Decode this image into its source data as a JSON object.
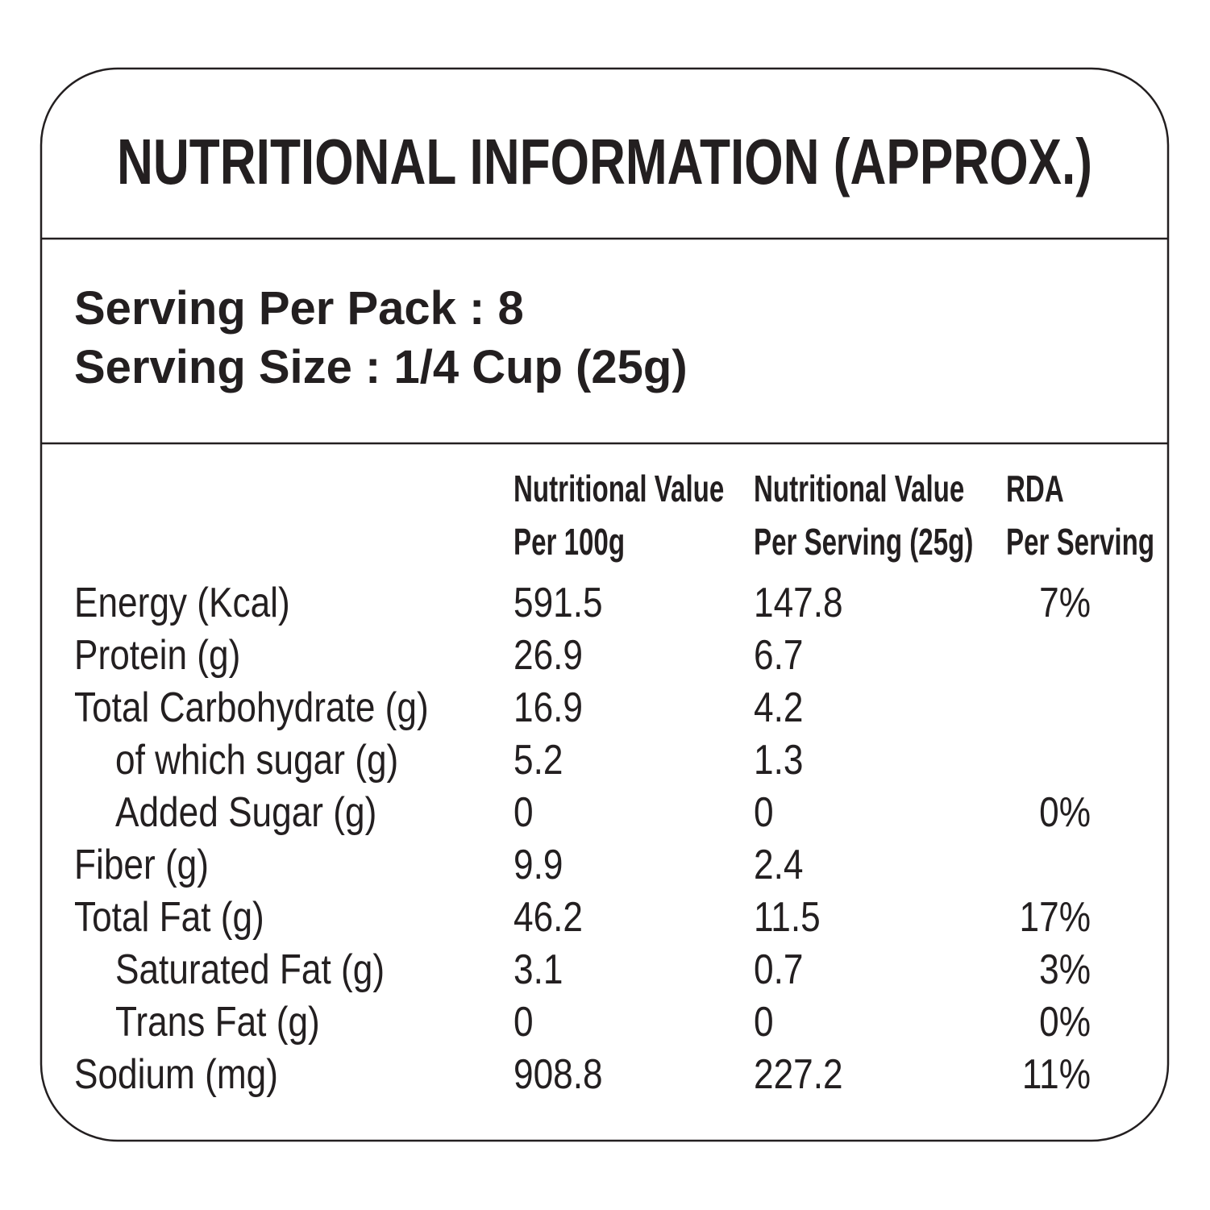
{
  "title": "NUTRITIONAL INFORMATION (APPROX.)",
  "serving": [
    "Serving Per Pack : 8",
    "Serving Size : 1/4 Cup (25g)"
  ],
  "table": {
    "columns": [
      [
        "Nutritional Value",
        "Per 100g"
      ],
      [
        "Nutritional Value",
        "Per Serving (25g)"
      ],
      [
        "RDA",
        "Per Serving"
      ]
    ],
    "rows": [
      {
        "name": "Energy  (Kcal)",
        "sub": false,
        "per_100g": "591.5",
        "per_serving": "147.8",
        "rda": "7%"
      },
      {
        "name": "Protein (g)",
        "sub": false,
        "per_100g": "26.9",
        "per_serving": "6.7",
        "rda": null
      },
      {
        "name": "Total Carbohydrate (g)",
        "sub": false,
        "per_100g": "16.9",
        "per_serving": "4.2",
        "rda": null
      },
      {
        "name": "of which sugar (g)",
        "sub": true,
        "per_100g": "5.2",
        "per_serving": "1.3",
        "rda": null
      },
      {
        "name": "Added Sugar (g)",
        "sub": true,
        "per_100g": "0",
        "per_serving": "0",
        "rda": "0%"
      },
      {
        "name": "Fiber (g)",
        "sub": false,
        "per_100g": "9.9",
        "per_serving": "2.4",
        "rda": null
      },
      {
        "name": "Total Fat (g)",
        "sub": false,
        "per_100g": "46.2",
        "per_serving": "11.5",
        "rda": "17%"
      },
      {
        "name": "Saturated Fat (g)",
        "sub": true,
        "per_100g": "3.1",
        "per_serving": "0.7",
        "rda": "3%"
      },
      {
        "name": "Trans Fat (g)",
        "sub": true,
        "per_100g": "0",
        "per_serving": "0",
        "rda": "0%"
      },
      {
        "name": "Sodium (mg)",
        "sub": false,
        "per_100g": "908.8",
        "per_serving": "227.2",
        "rda": "11%"
      }
    ]
  }
}
